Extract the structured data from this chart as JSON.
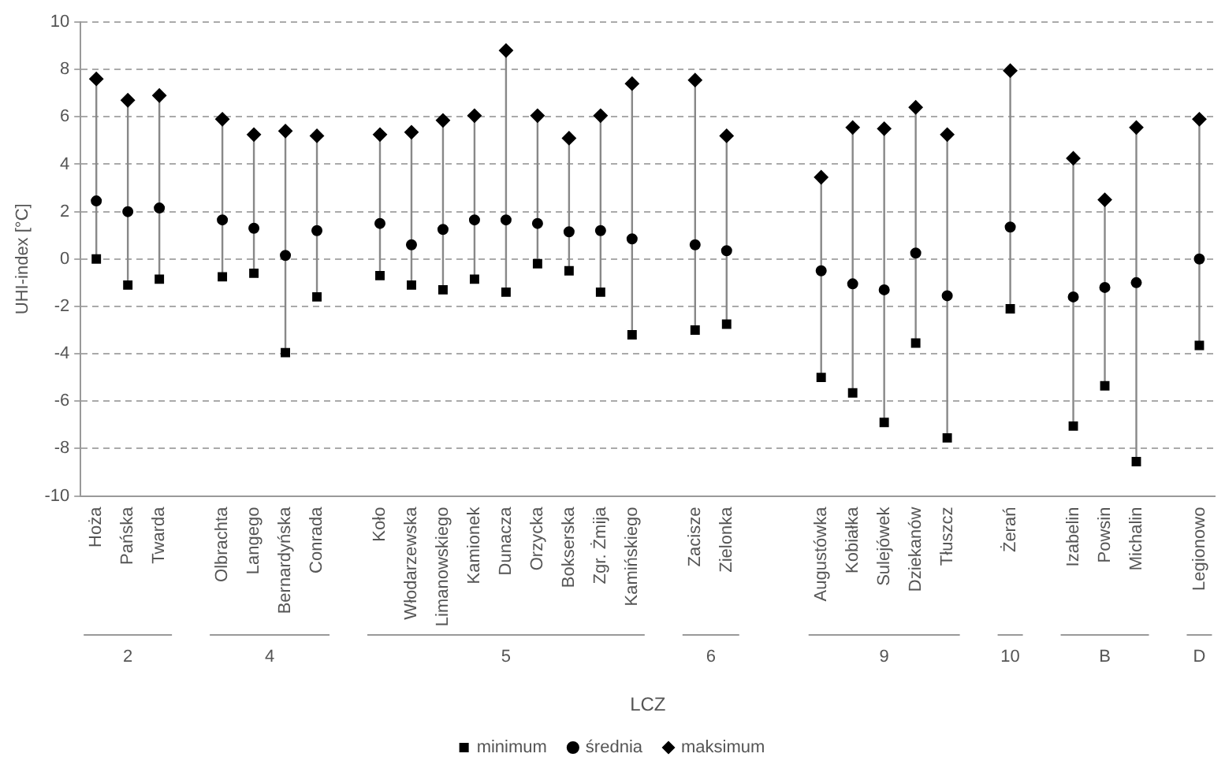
{
  "chart_data": {
    "type": "scatter",
    "ylabel": "UHI-index [°C]",
    "xlabel": "LCZ",
    "categories": [
      "Hoża",
      "Pańska",
      "Twarda",
      null,
      "Olbrachta",
      "Langego",
      "Bernardyńska",
      "Conrada",
      null,
      "Koło",
      "Włodarzewska",
      "Limanowskiego",
      "Kamionek",
      "Dunacza",
      "Orzycka",
      "Bokserska",
      "Zgr. Żmija",
      "Kamińskiego",
      null,
      "Zacisze",
      "Zielonka",
      null,
      null,
      "Augustówka",
      "Kobiałka",
      "Sulejówek",
      "Dziekanów",
      "Tłuszcz",
      null,
      "Żerań",
      null,
      "Izabelin",
      "Powsin",
      "Michalin",
      null,
      "Legionowo"
    ],
    "series": [
      {
        "name": "minimum",
        "color": "#000000",
        "marker": "square",
        "values": [
          0.0,
          -1.1,
          -0.85,
          null,
          -0.75,
          -0.6,
          -3.95,
          -1.6,
          null,
          -0.7,
          -1.1,
          -1.3,
          -0.85,
          -1.4,
          -0.2,
          -0.5,
          -1.4,
          -3.2,
          null,
          -3.0,
          -2.75,
          null,
          null,
          -5.0,
          -5.65,
          -6.9,
          -3.55,
          -7.55,
          null,
          -2.1,
          null,
          -7.05,
          -5.35,
          -8.55,
          null,
          -3.65
        ]
      },
      {
        "name": "średnia",
        "color": "#000000",
        "marker": "circle",
        "values": [
          2.45,
          2.0,
          2.15,
          null,
          1.65,
          1.3,
          0.15,
          1.2,
          null,
          1.5,
          0.6,
          1.25,
          1.65,
          1.65,
          1.5,
          1.15,
          1.2,
          0.85,
          null,
          0.6,
          0.35,
          null,
          null,
          -0.5,
          -1.05,
          -1.3,
          0.25,
          -1.55,
          null,
          1.35,
          null,
          -1.6,
          -1.2,
          -1.0,
          null,
          0.0
        ]
      },
      {
        "name": "maksimum",
        "color": "#000000",
        "marker": "diamond",
        "values": [
          7.6,
          6.7,
          6.9,
          null,
          5.9,
          5.25,
          5.4,
          5.2,
          null,
          5.25,
          5.35,
          5.85,
          6.05,
          8.8,
          6.05,
          5.1,
          6.05,
          7.4,
          null,
          7.55,
          5.2,
          null,
          null,
          3.45,
          5.55,
          5.5,
          6.4,
          5.25,
          null,
          7.95,
          null,
          4.25,
          2.5,
          5.55,
          null,
          5.9
        ]
      }
    ],
    "annotations": [
      "2",
      "4",
      "5",
      "6",
      "9",
      "10",
      "B",
      "D"
    ],
    "ylim": [
      -10,
      10
    ],
    "yticks": [
      -10,
      -8,
      -6,
      -4,
      -2,
      0,
      2,
      4,
      6,
      8,
      10
    ],
    "grid": "y",
    "legend": "bottom"
  }
}
